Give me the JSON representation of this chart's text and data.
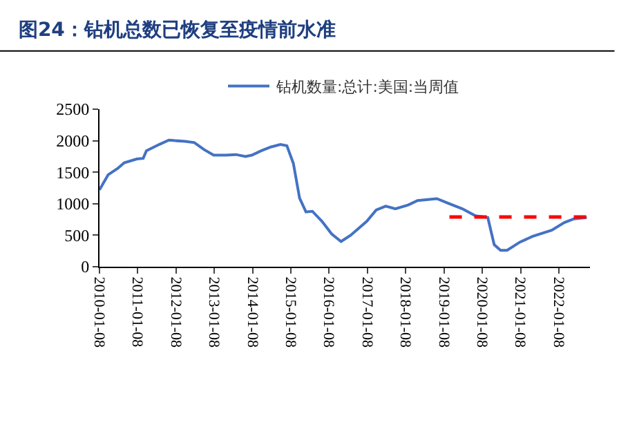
{
  "chart_data": {
    "type": "line",
    "title": "图24：钻机总数已恢复至疫情前水准",
    "series": [
      {
        "name": "钻机数量:总计:美国:当周值",
        "color": "#4472c4",
        "line_style": "solid",
        "x": [
          "2010-01-08",
          "2010-04",
          "2010-07",
          "2010-09",
          "2011-01",
          "2011-03",
          "2011-04",
          "2011-08",
          "2011-11",
          "2012-01",
          "2012-04",
          "2012-07",
          "2012-10",
          "2013-01",
          "2013-05",
          "2013-08",
          "2013-11",
          "2014-01",
          "2014-04",
          "2014-07",
          "2014-10",
          "2014-12",
          "2015-02",
          "2015-04",
          "2015-06",
          "2015-08",
          "2015-11",
          "2016-02",
          "2016-05",
          "2016-08",
          "2017-01",
          "2017-04",
          "2017-07",
          "2017-10",
          "2018-02",
          "2018-05",
          "2018-11",
          "2019-03",
          "2019-07",
          "2019-11",
          "2020-03",
          "2020-05",
          "2020-07",
          "2020-09",
          "2021-01",
          "2021-05",
          "2021-11",
          "2022-03",
          "2022-06",
          "2022-10"
        ],
        "values": [
          1220,
          1460,
          1560,
          1650,
          1710,
          1720,
          1840,
          1940,
          2010,
          2000,
          1990,
          1970,
          1860,
          1770,
          1770,
          1780,
          1750,
          1770,
          1840,
          1900,
          1940,
          1920,
          1640,
          1090,
          870,
          880,
          720,
          520,
          400,
          500,
          720,
          900,
          960,
          920,
          980,
          1050,
          1080,
          1000,
          920,
          810,
          780,
          350,
          260,
          260,
          390,
          480,
          580,
          700,
          760,
          780
        ]
      },
      {
        "color": "#ff0000",
        "line_style": "dashed",
        "x": [
          "2019-03",
          "2022-11"
        ],
        "values": [
          790,
          790
        ]
      }
    ],
    "xlim": [
      "2010-01-08",
      "2022-11"
    ],
    "xticks": [
      "2010-01-08",
      "2011-01-08",
      "2012-01-08",
      "2013-01-08",
      "2014-01-08",
      "2015-01-08",
      "2016-01-08",
      "2017-01-08",
      "2018-01-08",
      "2019-01-08",
      "2020-01-08",
      "2021-01-08",
      "2022-01-08"
    ],
    "ylim": [
      0,
      2500
    ],
    "yticks": [
      0,
      500,
      1000,
      1500,
      2000,
      2500
    ],
    "legend": "top",
    "marker": "none"
  }
}
